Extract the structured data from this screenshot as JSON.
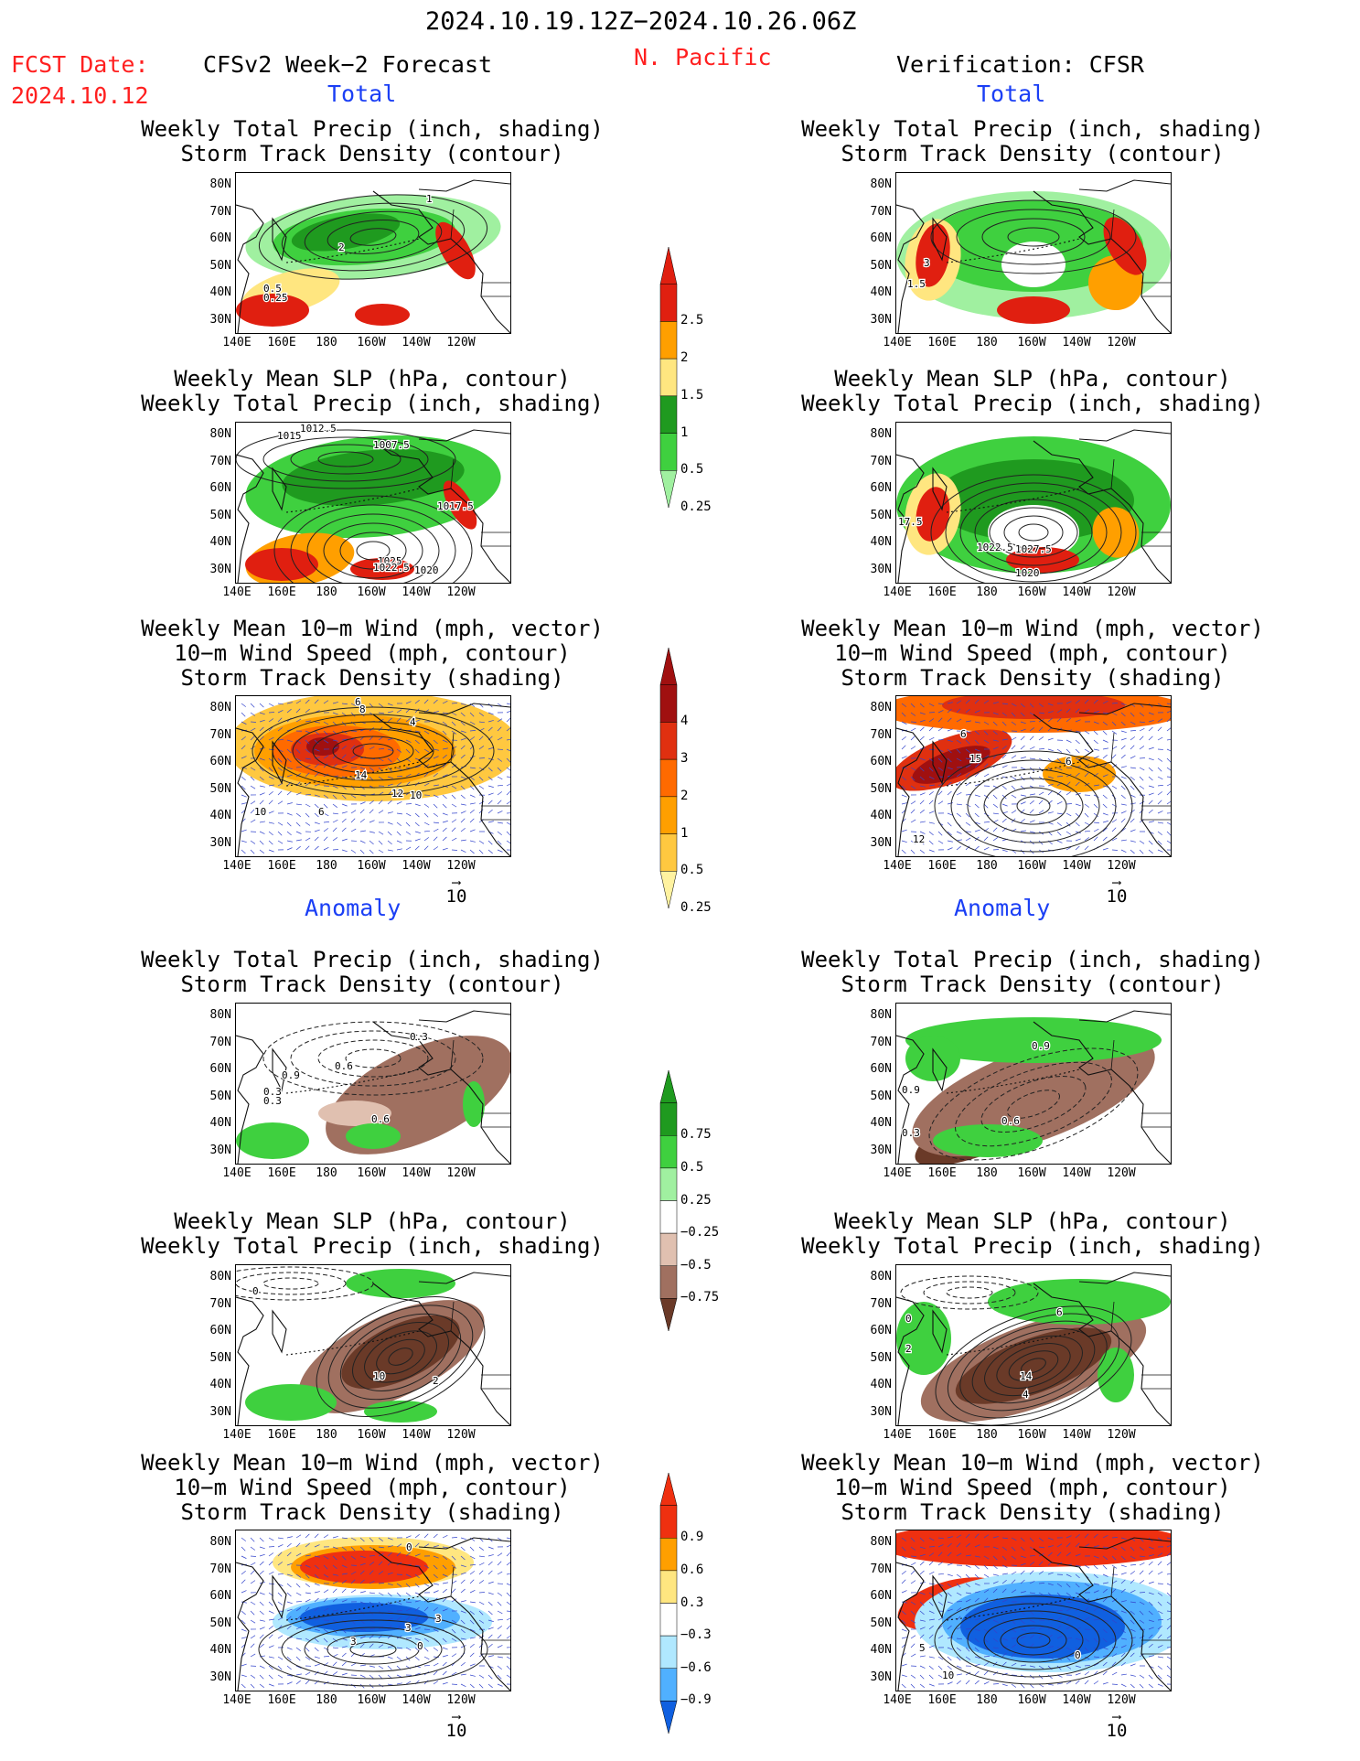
{
  "header": {
    "period": "2024.10.19.12Z−2024.10.26.06Z",
    "fcst_label": "FCST Date:",
    "fcst_date": "2024.10.12",
    "model": "CFSv2 Week−2 Forecast",
    "region": "N. Pacific",
    "verification": "Verification: CFSR"
  },
  "sections": {
    "total": "Total",
    "anomaly": "Anomaly"
  },
  "titles": {
    "precip_storm": [
      "Weekly Total Precip (inch, shading)",
      "Storm Track Density (contour)"
    ],
    "slp_precip": [
      "Weekly Mean SLP (hPa, contour)",
      "Weekly Total Precip (inch, shading)"
    ],
    "wind_storm": [
      "Weekly Mean 10−m Wind (mph, vector)",
      "10−m Wind Speed (mph, contour)",
      "Storm Track Density (shading)"
    ]
  },
  "axes": {
    "lat_labels": [
      "80N",
      "70N",
      "60N",
      "50N",
      "40N",
      "30N"
    ],
    "lon_labels": [
      "140E",
      "160E",
      "180",
      "160W",
      "140W",
      "120W"
    ]
  },
  "vector_ref": "10",
  "colorbars": {
    "precip_total": {
      "labels": [
        "2.5",
        "2",
        "1.5",
        "1",
        "0.5",
        "0.25"
      ],
      "colors": [
        "#e01f10",
        "#ff9f00",
        "#ffe680",
        "#1f9a1f",
        "#3fd03f",
        "#a0f0a0"
      ]
    },
    "storm_total": {
      "labels": [
        "4",
        "3",
        "2",
        "1",
        "0.5",
        "0.25"
      ],
      "colors": [
        "#a01010",
        "#e03010",
        "#ff6a00",
        "#ff9f00",
        "#ffc840",
        "#fff2a0"
      ]
    },
    "precip_anom": {
      "labels": [
        "0.75",
        "0.5",
        "0.25",
        "−0.25",
        "−0.5",
        "−0.75"
      ],
      "colors": [
        "#1f9a1f",
        "#3fd03f",
        "#a0f0a0",
        "#ffffff",
        "#e0c0b0",
        "#a07060",
        "#6a3a28"
      ]
    },
    "storm_anom": {
      "labels": [
        "0.9",
        "0.6",
        "0.3",
        "−0.3",
        "−0.6",
        "−0.9"
      ],
      "colors": [
        "#ef3010",
        "#ff9f00",
        "#ffe680",
        "#ffffff",
        "#b0e8ff",
        "#50b0ff",
        "#1060e0"
      ]
    }
  },
  "panels": {
    "f_total_precip": {
      "contour_labels": [
        "1",
        "2",
        "0.5",
        "0.25"
      ]
    },
    "v_total_precip": {
      "contour_labels": [
        "3",
        "1.5"
      ]
    },
    "f_total_slp": {
      "contour_labels": [
        "1012.5",
        "1015",
        "1007.5",
        "1017.5",
        "1025",
        "1022.5",
        "1020"
      ]
    },
    "v_total_slp": {
      "contour_labels": [
        "17.5",
        "1022.5",
        "1027.5",
        "1020"
      ]
    },
    "f_total_wind": {
      "contour_labels": [
        "6",
        "8",
        "4",
        "14",
        "12",
        "10",
        "10",
        "6"
      ]
    },
    "v_total_wind": {
      "contour_labels": [
        "6",
        "15",
        "6",
        "12"
      ]
    },
    "f_anom_precip": {
      "contour_labels": [
        "0.3",
        "0.6",
        "0.9",
        "0.3",
        "0.3",
        "0.6"
      ]
    },
    "v_anom_precip": {
      "contour_labels": [
        "0.9",
        "0.9",
        "0.3",
        "0.6"
      ]
    },
    "f_anom_slp": {
      "contour_labels": [
        "0",
        "10",
        "2"
      ]
    },
    "v_anom_slp": {
      "contour_labels": [
        "0",
        "6",
        "2",
        "14",
        "4"
      ]
    },
    "f_anom_wind": {
      "contour_labels": [
        "0",
        "3",
        "3",
        "3",
        "0"
      ]
    },
    "v_anom_wind": {
      "contour_labels": [
        "5",
        "10",
        "0"
      ]
    }
  }
}
